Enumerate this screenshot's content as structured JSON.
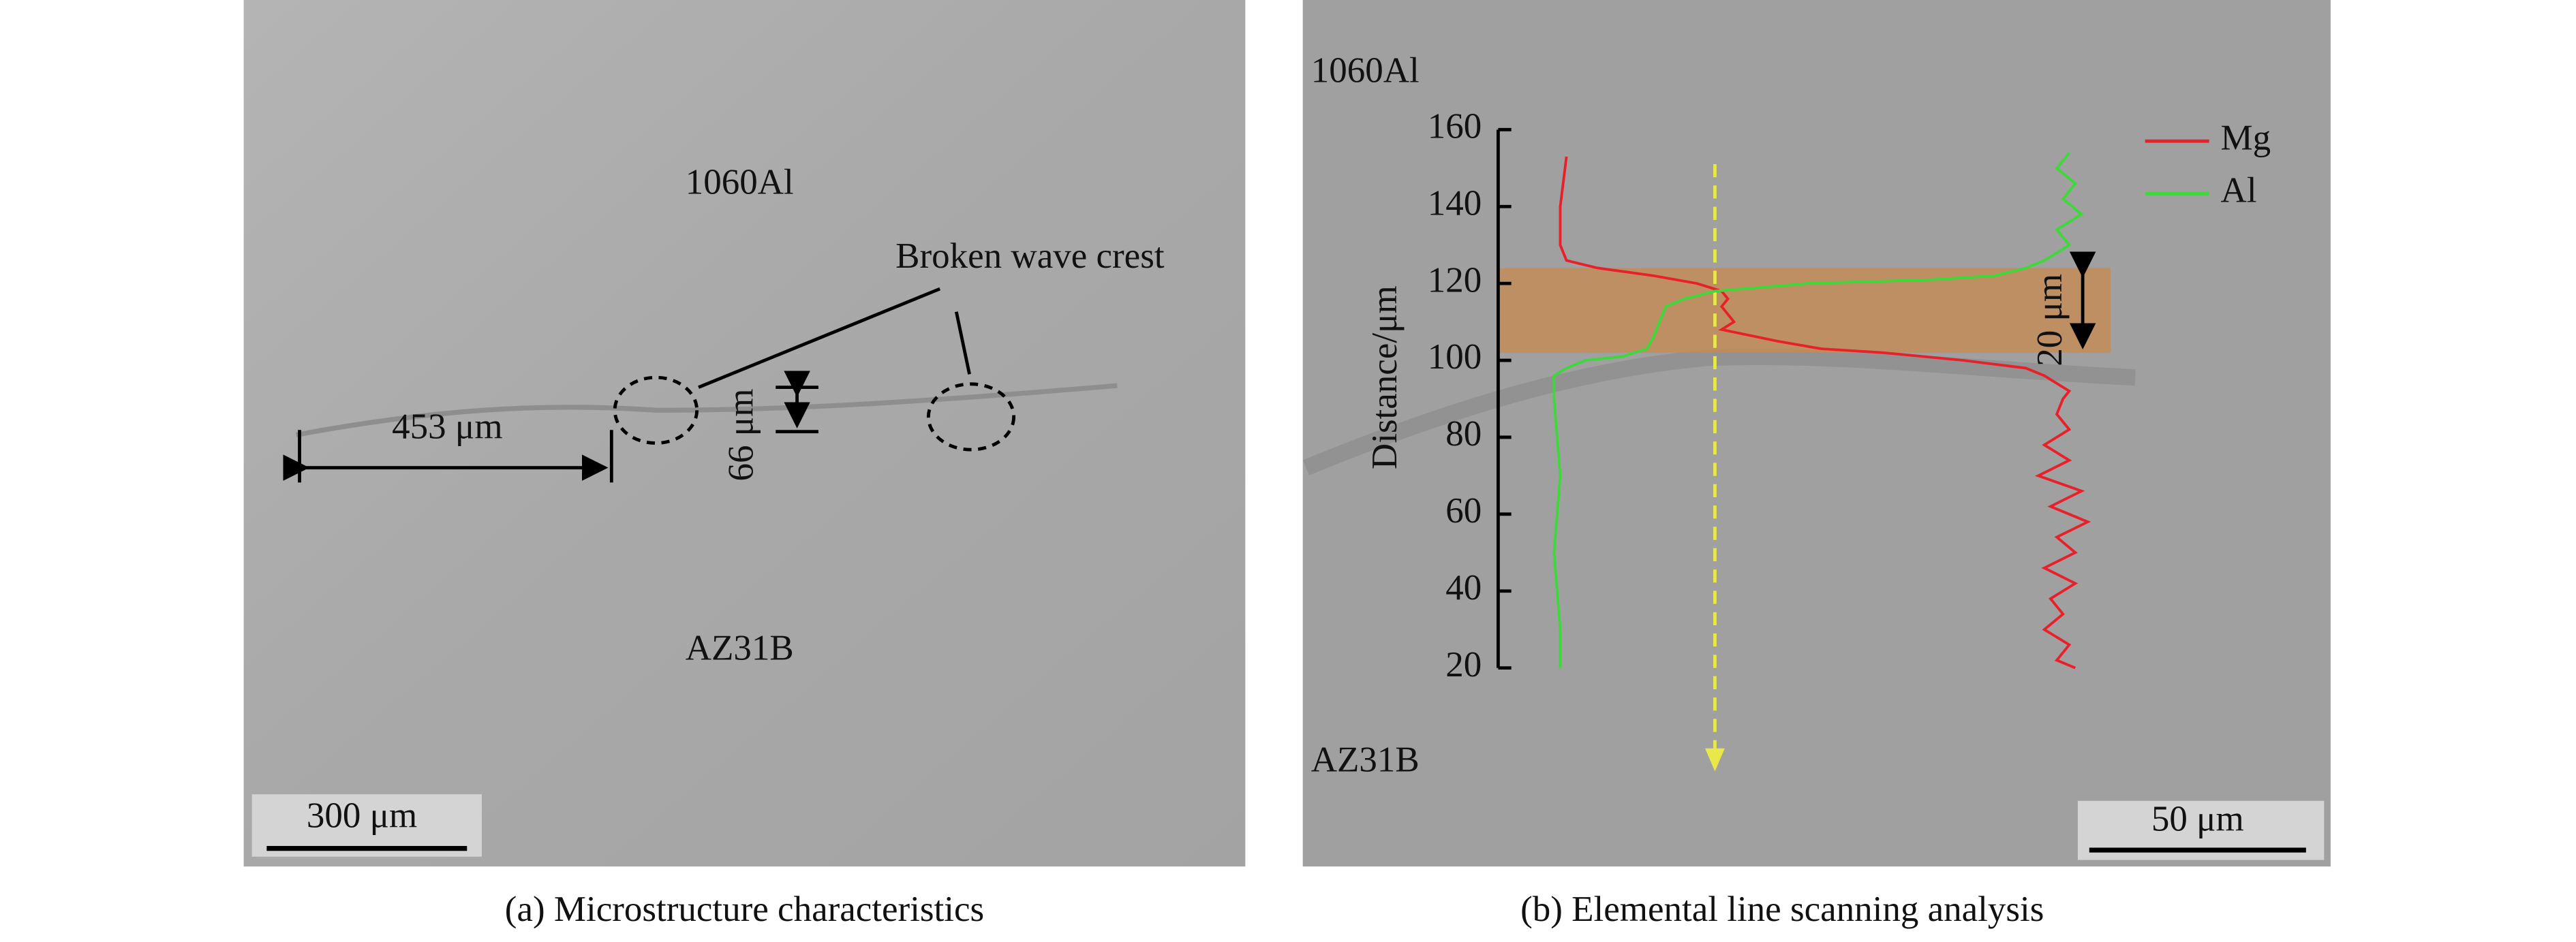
{
  "panel_a": {
    "caption": "(a) Microstructure characteristics",
    "upper": "1060Al",
    "lower": "AZ31B",
    "feature": "Broken wave crest",
    "spacing": "453 μm",
    "height": "66 μm",
    "scale_bar": "300 μm"
  },
  "panel_b": {
    "caption": "(b) Elemental line scanning analysis",
    "upper": "1060Al",
    "lower": "AZ31B",
    "scale_bar": "50 μm"
  },
  "chart_data": {
    "type": "line",
    "y_label": "Distance/μm",
    "ylim": [
      20,
      160
    ],
    "yticks": [
      20,
      40,
      60,
      80,
      100,
      120,
      140,
      160
    ],
    "xlim": [
      0,
      100
    ],
    "band": [
      102,
      124
    ],
    "band_label": "20 μm",
    "series": [
      {
        "name": "Mg",
        "color": "#e8202a",
        "values": [
          153,
          140,
          130,
          126,
          124,
          122,
          120,
          118,
          116,
          114,
          112,
          110,
          108,
          105,
          103,
          102,
          100,
          98,
          96,
          94,
          92,
          90,
          86,
          82,
          78,
          74,
          70,
          66,
          62,
          58,
          54,
          50,
          46,
          42,
          38,
          34,
          30,
          26,
          22,
          20
        ],
        "x": [
          11,
          10,
          10,
          11,
          16,
          25,
          32,
          36,
          37,
          36,
          37,
          38,
          36,
          45,
          52,
          62,
          75,
          85,
          88,
          90,
          92,
          91,
          90,
          92,
          88,
          92,
          87,
          94,
          89,
          95,
          90,
          93,
          88,
          93,
          89,
          91,
          88,
          92,
          90,
          93
        ]
      },
      {
        "name": "Al",
        "color": "#3ed83a",
        "values": [
          20,
          30,
          50,
          70,
          90,
          96,
          98,
          100,
          101,
          103,
          106,
          110,
          114,
          116,
          118,
          120,
          121,
          122,
          124,
          126,
          130,
          134,
          138,
          142,
          146,
          150,
          154
        ],
        "x": [
          10,
          10,
          9,
          10,
          9,
          9,
          11,
          14,
          20,
          24,
          25,
          26,
          27,
          30,
          35,
          50,
          70,
          80,
          85,
          88,
          92,
          90,
          94,
          91,
          93,
          90,
          92
        ]
      }
    ]
  }
}
